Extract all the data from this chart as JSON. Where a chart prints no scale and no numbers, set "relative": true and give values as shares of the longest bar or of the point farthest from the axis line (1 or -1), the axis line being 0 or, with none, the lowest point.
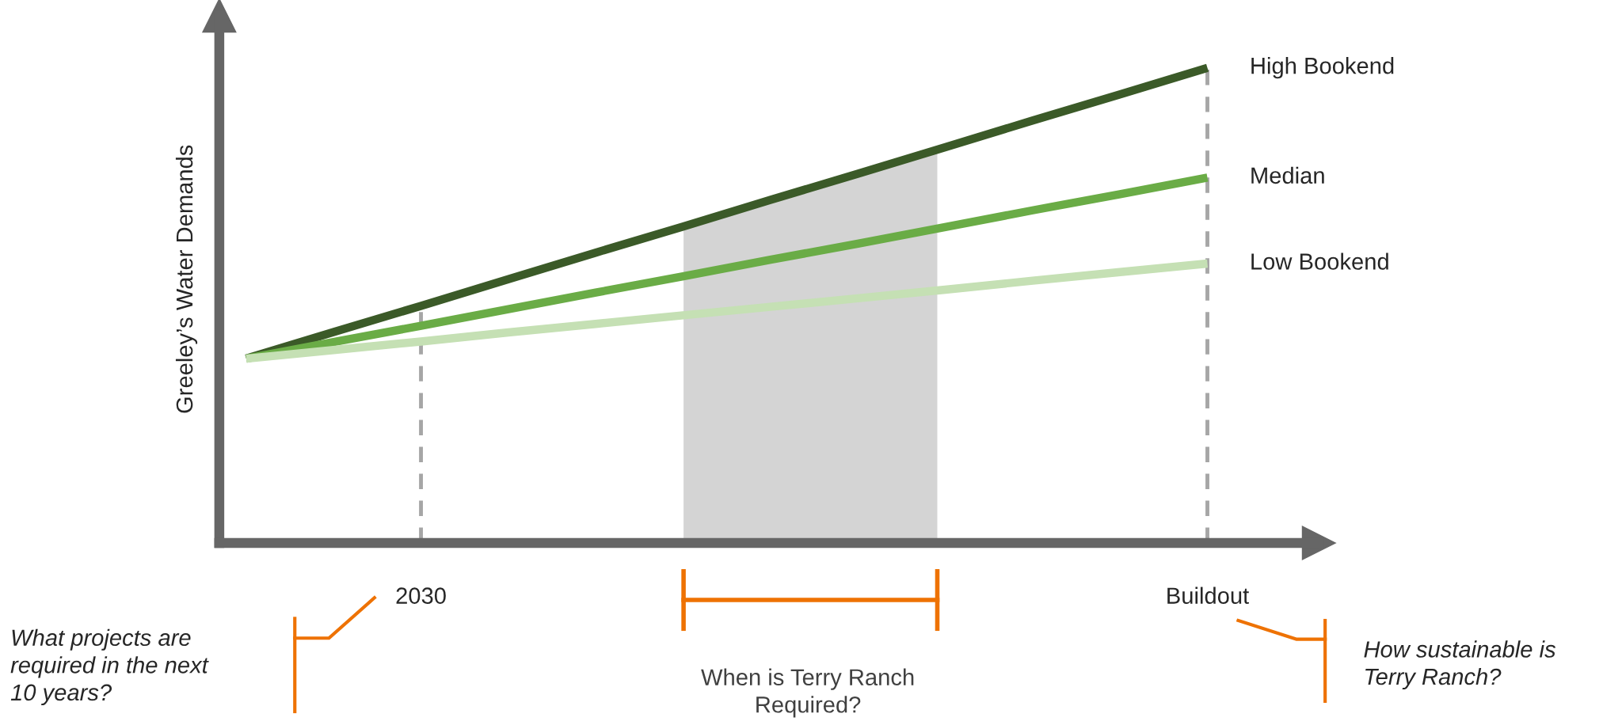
{
  "chart_data": {
    "type": "line",
    "relative": true,
    "ylabel": "Greeley’s Water Demands",
    "categories": [
      null,
      null,
      "2030",
      null,
      null,
      null,
      null,
      null,
      null,
      null,
      null,
      "Buildout"
    ],
    "series": [
      {
        "name": "High Bookend",
        "color": "#3b5a28",
        "values": [
          0.388,
          0.444,
          0.499,
          0.555,
          0.611,
          0.666,
          0.722,
          0.777,
          0.833,
          0.889,
          0.944,
          1
        ]
      },
      {
        "name": "Median",
        "color": "#6aac46",
        "values": [
          0.388,
          0.423,
          0.457,
          0.492,
          0.527,
          0.561,
          0.596,
          0.63,
          0.665,
          0.7,
          0.734,
          0.769
        ]
      },
      {
        "name": "Low Bookend",
        "color": "#c5e0b4",
        "values": [
          0.388,
          0.406,
          0.424,
          0.443,
          0.461,
          0.479,
          0.497,
          0.515,
          0.533,
          0.552,
          0.57,
          0.588
        ]
      }
    ],
    "ref_lines": [
      {
        "axis": "x",
        "value": "2030",
        "color": "#a6a6a6",
        "line_style": "dashed"
      },
      {
        "axis": "x",
        "value": "Buildout",
        "color": "#a6a6a6",
        "line_style": "dashed"
      }
    ],
    "annotations": [
      "What projects are\nrequired in the next\n10 years?",
      "When is Terry Ranch\nRequired?",
      "How sustainable is\nTerry Ranch?"
    ],
    "grid": false,
    "legend": false,
    "marker": "none",
    "line_style": "solid"
  }
}
